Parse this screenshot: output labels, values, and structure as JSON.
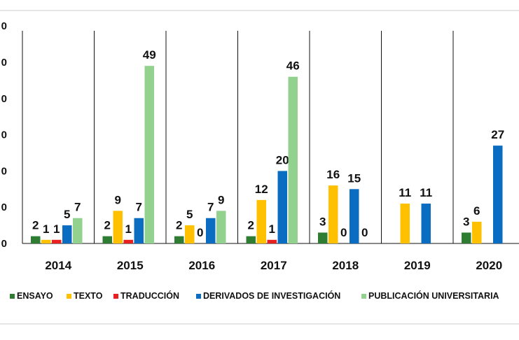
{
  "chart_data": {
    "type": "bar",
    "categories": [
      "2014",
      "2015",
      "2016",
      "2017",
      "2018",
      "2019",
      "2020"
    ],
    "series": [
      {
        "name": "ENSAYO",
        "color": "#2e7d32",
        "values": [
          2,
          2,
          2,
          2,
          3,
          null,
          3
        ]
      },
      {
        "name": "TEXTO",
        "color": "#ffc000",
        "values": [
          1,
          9,
          5,
          12,
          16,
          11,
          6
        ]
      },
      {
        "name": "TRADUCCIÓN",
        "color": "#e82020",
        "values": [
          1,
          1,
          null,
          1,
          null,
          null,
          null
        ]
      },
      {
        "name": "DERIVADOS DE INVESTIGACIÓN",
        "color": "#0b6dc2",
        "values": [
          5,
          7,
          7,
          20,
          15,
          11,
          27
        ]
      },
      {
        "name": "PUBLICACIÓN UNIVERSITARIA",
        "color": "#93d18f",
        "values": [
          7,
          49,
          9,
          46,
          null,
          null,
          null
        ]
      }
    ],
    "data_labels": [
      [
        "2",
        "1",
        "1",
        "5",
        "7"
      ],
      [
        "2",
        "9",
        "1",
        "7",
        "49"
      ],
      [
        "2",
        "5",
        "0",
        "7",
        "9"
      ],
      [
        "2",
        "12",
        "1",
        "20",
        "46"
      ],
      [
        "3",
        "16",
        "0",
        "15",
        "0"
      ],
      [
        "",
        "11",
        "",
        "11",
        ""
      ],
      [
        "3",
        "6",
        "",
        "27",
        ""
      ]
    ],
    "yticks": [
      "0",
      "0",
      "0",
      "0",
      "0",
      "0",
      "0"
    ],
    "ylim": [
      0,
      60
    ],
    "grid": false,
    "legend_position": "bottom",
    "title": "",
    "xlabel": "",
    "ylabel": ""
  }
}
